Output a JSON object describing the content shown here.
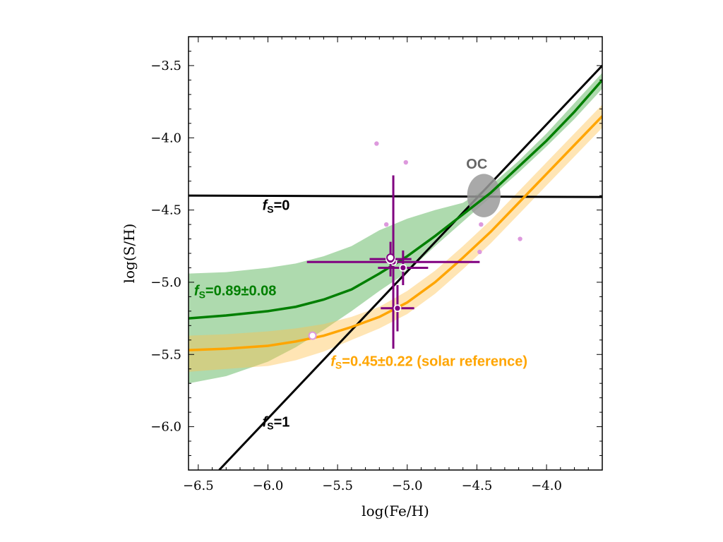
{
  "chart_data": {
    "type": "line",
    "xlabel": "log(Fe/H)",
    "ylabel": "log(S/H)",
    "xlim": [
      -6.57,
      -3.6
    ],
    "ylim": [
      -6.3,
      -3.3
    ],
    "xticks": [
      -6.5,
      -6.0,
      -5.5,
      -5.0,
      -4.5,
      -4.0
    ],
    "xtick_labels": [
      "−6.5",
      "−6.0",
      "−5.5",
      "−5.0",
      "−4.5",
      "−4.0"
    ],
    "yticks": [
      -3.5,
      -4.0,
      -4.5,
      -5.0,
      -5.5,
      -6.0
    ],
    "ytick_labels": [
      "−3.5",
      "−4.0",
      "−4.5",
      "−5.0",
      "−5.5",
      "−6.0"
    ],
    "grid": false,
    "colors": {
      "green": "#007f00",
      "green_band": "#3fa63f",
      "orange": "#ffa500",
      "orange_band": "#ffc04d",
      "purple": "#800080",
      "light_points": "#dd99dd",
      "oc": "#9a9a9a",
      "black": "#000000"
    },
    "reference_lines": [
      {
        "f": "0",
        "points": [
          [
            -6.57,
            -4.4
          ],
          [
            -3.6,
            -4.41
          ]
        ]
      },
      {
        "f": "1",
        "points": [
          [
            -6.35,
            -6.3
          ],
          [
            -3.6,
            -3.5
          ]
        ]
      }
    ],
    "series": [
      {
        "color_key": "green",
        "label_prefix": "S",
        "label_value": "=0.89±0.08",
        "x": [
          -6.57,
          -6.3,
          -6.0,
          -5.8,
          -5.6,
          -5.4,
          -5.2,
          -5.0,
          -4.8,
          -4.6,
          -4.4,
          -4.2,
          -4.0,
          -3.8,
          -3.6
        ],
        "y": [
          -5.25,
          -5.23,
          -5.2,
          -5.17,
          -5.12,
          -5.05,
          -4.94,
          -4.82,
          -4.68,
          -4.53,
          -4.38,
          -4.2,
          -4.02,
          -3.82,
          -3.6
        ],
        "band_upper": [
          -4.94,
          -4.93,
          -4.9,
          -4.87,
          -4.82,
          -4.75,
          -4.64,
          -4.56,
          -4.5,
          -4.45,
          -4.33,
          -4.16,
          -3.97,
          -3.76,
          -3.55
        ],
        "band_lower": [
          -5.7,
          -5.65,
          -5.55,
          -5.45,
          -5.33,
          -5.2,
          -5.06,
          -4.93,
          -4.75,
          -4.58,
          -4.41,
          -4.24,
          -4.06,
          -3.87,
          -3.66
        ]
      },
      {
        "color_key": "orange",
        "label_prefix": "S",
        "label_value": "=0.45±0.22 (solar reference)",
        "x": [
          -6.57,
          -6.3,
          -6.0,
          -5.8,
          -5.6,
          -5.4,
          -5.2,
          -5.0,
          -4.8,
          -4.6,
          -4.4,
          -4.2,
          -4.0,
          -3.8,
          -3.6
        ],
        "y": [
          -5.47,
          -5.46,
          -5.44,
          -5.41,
          -5.37,
          -5.31,
          -5.24,
          -5.14,
          -5.0,
          -4.83,
          -4.65,
          -4.45,
          -4.25,
          -4.05,
          -3.85
        ],
        "band_upper": [
          -5.37,
          -5.36,
          -5.34,
          -5.32,
          -5.29,
          -5.24,
          -5.17,
          -5.06,
          -4.92,
          -4.75,
          -4.57,
          -4.37,
          -4.17,
          -3.97,
          -3.77
        ],
        "band_lower": [
          -5.62,
          -5.6,
          -5.58,
          -5.54,
          -5.48,
          -5.4,
          -5.32,
          -5.22,
          -5.08,
          -4.91,
          -4.73,
          -4.53,
          -4.33,
          -4.13,
          -3.93
        ]
      }
    ],
    "measurements": [
      {
        "x": -5.1,
        "y": -4.86,
        "xerr": 0.62,
        "yerr": 0.6,
        "size": "small"
      },
      {
        "x": -5.12,
        "y": -4.84,
        "xerr": 0.15,
        "yerr": 0.12,
        "size": "large"
      },
      {
        "x": -5.03,
        "y": -4.9,
        "xerr": 0.18,
        "yerr": 0.12,
        "size": "small"
      },
      {
        "x": -5.07,
        "y": -5.18,
        "xerr": 0.12,
        "yerr": 0.16,
        "size": "small"
      }
    ],
    "open_points": [
      {
        "x": -5.12,
        "y": -4.83
      },
      {
        "x": -5.68,
        "y": -5.37
      }
    ],
    "light_points": [
      {
        "x": -5.22,
        "y": -4.04
      },
      {
        "x": -5.01,
        "y": -4.17
      },
      {
        "x": -5.15,
        "y": -4.6
      },
      {
        "x": -4.47,
        "y": -4.6
      },
      {
        "x": -4.48,
        "y": -4.79
      },
      {
        "x": -4.19,
        "y": -4.7
      }
    ],
    "oc_region": {
      "label": "OC",
      "x": -4.45,
      "y": -4.4,
      "rx": 0.12,
      "ry": 0.15
    },
    "annotations": [
      {
        "kind": "ref",
        "prefix": "S",
        "value": "=0",
        "x": -6.04,
        "y": -4.5,
        "color_key": "black"
      },
      {
        "kind": "ref",
        "prefix": "S",
        "value": "=1",
        "x": -6.04,
        "y": -6.0,
        "color_key": "black"
      },
      {
        "kind": "series",
        "series_index": 0,
        "x": -6.53,
        "y": -5.09,
        "color_key": "green"
      },
      {
        "kind": "series",
        "series_index": 1,
        "x": -5.55,
        "y": -5.58,
        "color_key": "orange"
      }
    ]
  }
}
